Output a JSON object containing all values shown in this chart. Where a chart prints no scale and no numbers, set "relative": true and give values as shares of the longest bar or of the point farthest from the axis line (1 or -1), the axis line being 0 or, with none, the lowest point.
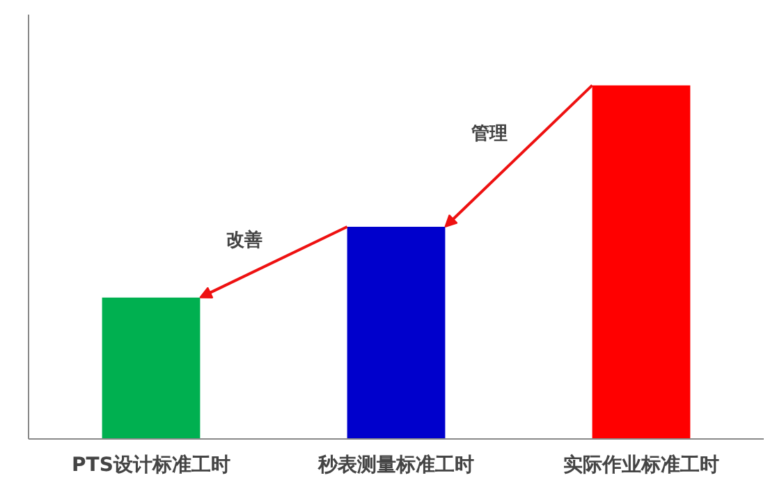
{
  "chart_data": {
    "type": "bar",
    "relative": true,
    "categories": [
      "PTS设计标准工时",
      "秒表测量标准工时",
      "实际作业标准工时"
    ],
    "values": [
      0.4,
      0.6,
      1.0
    ],
    "colors": [
      "#00b050",
      "#0000cc",
      "#ff0000"
    ],
    "annotations": [
      "改善",
      "管理"
    ],
    "grid": false
  }
}
